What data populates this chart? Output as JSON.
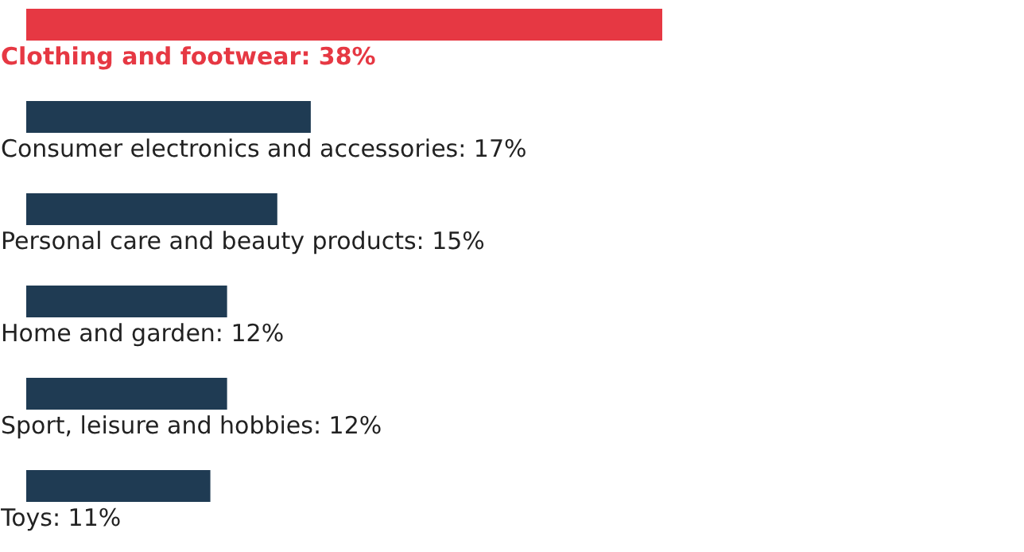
{
  "chart_data": {
    "type": "bar",
    "orientation": "horizontal",
    "categories": [
      null,
      null,
      null,
      null,
      null,
      null
    ],
    "values": [
      38,
      17,
      15,
      12,
      12,
      11
    ],
    "value_labels": [
      "Clothing and footwear: 38%",
      "Consumer electronics and accessories: 17%",
      "Personal care and beauty products: 15%",
      "Home and garden: 12%",
      "Sport, leisure and hobbies: 12%",
      "Toys: 11%"
    ],
    "color": "#1f3b53",
    "colors": [
      "#e63843",
      "#1f3b53",
      "#1f3b53",
      "#1f3b53",
      "#1f3b53",
      "#1f3b53"
    ],
    "grid": false
  }
}
